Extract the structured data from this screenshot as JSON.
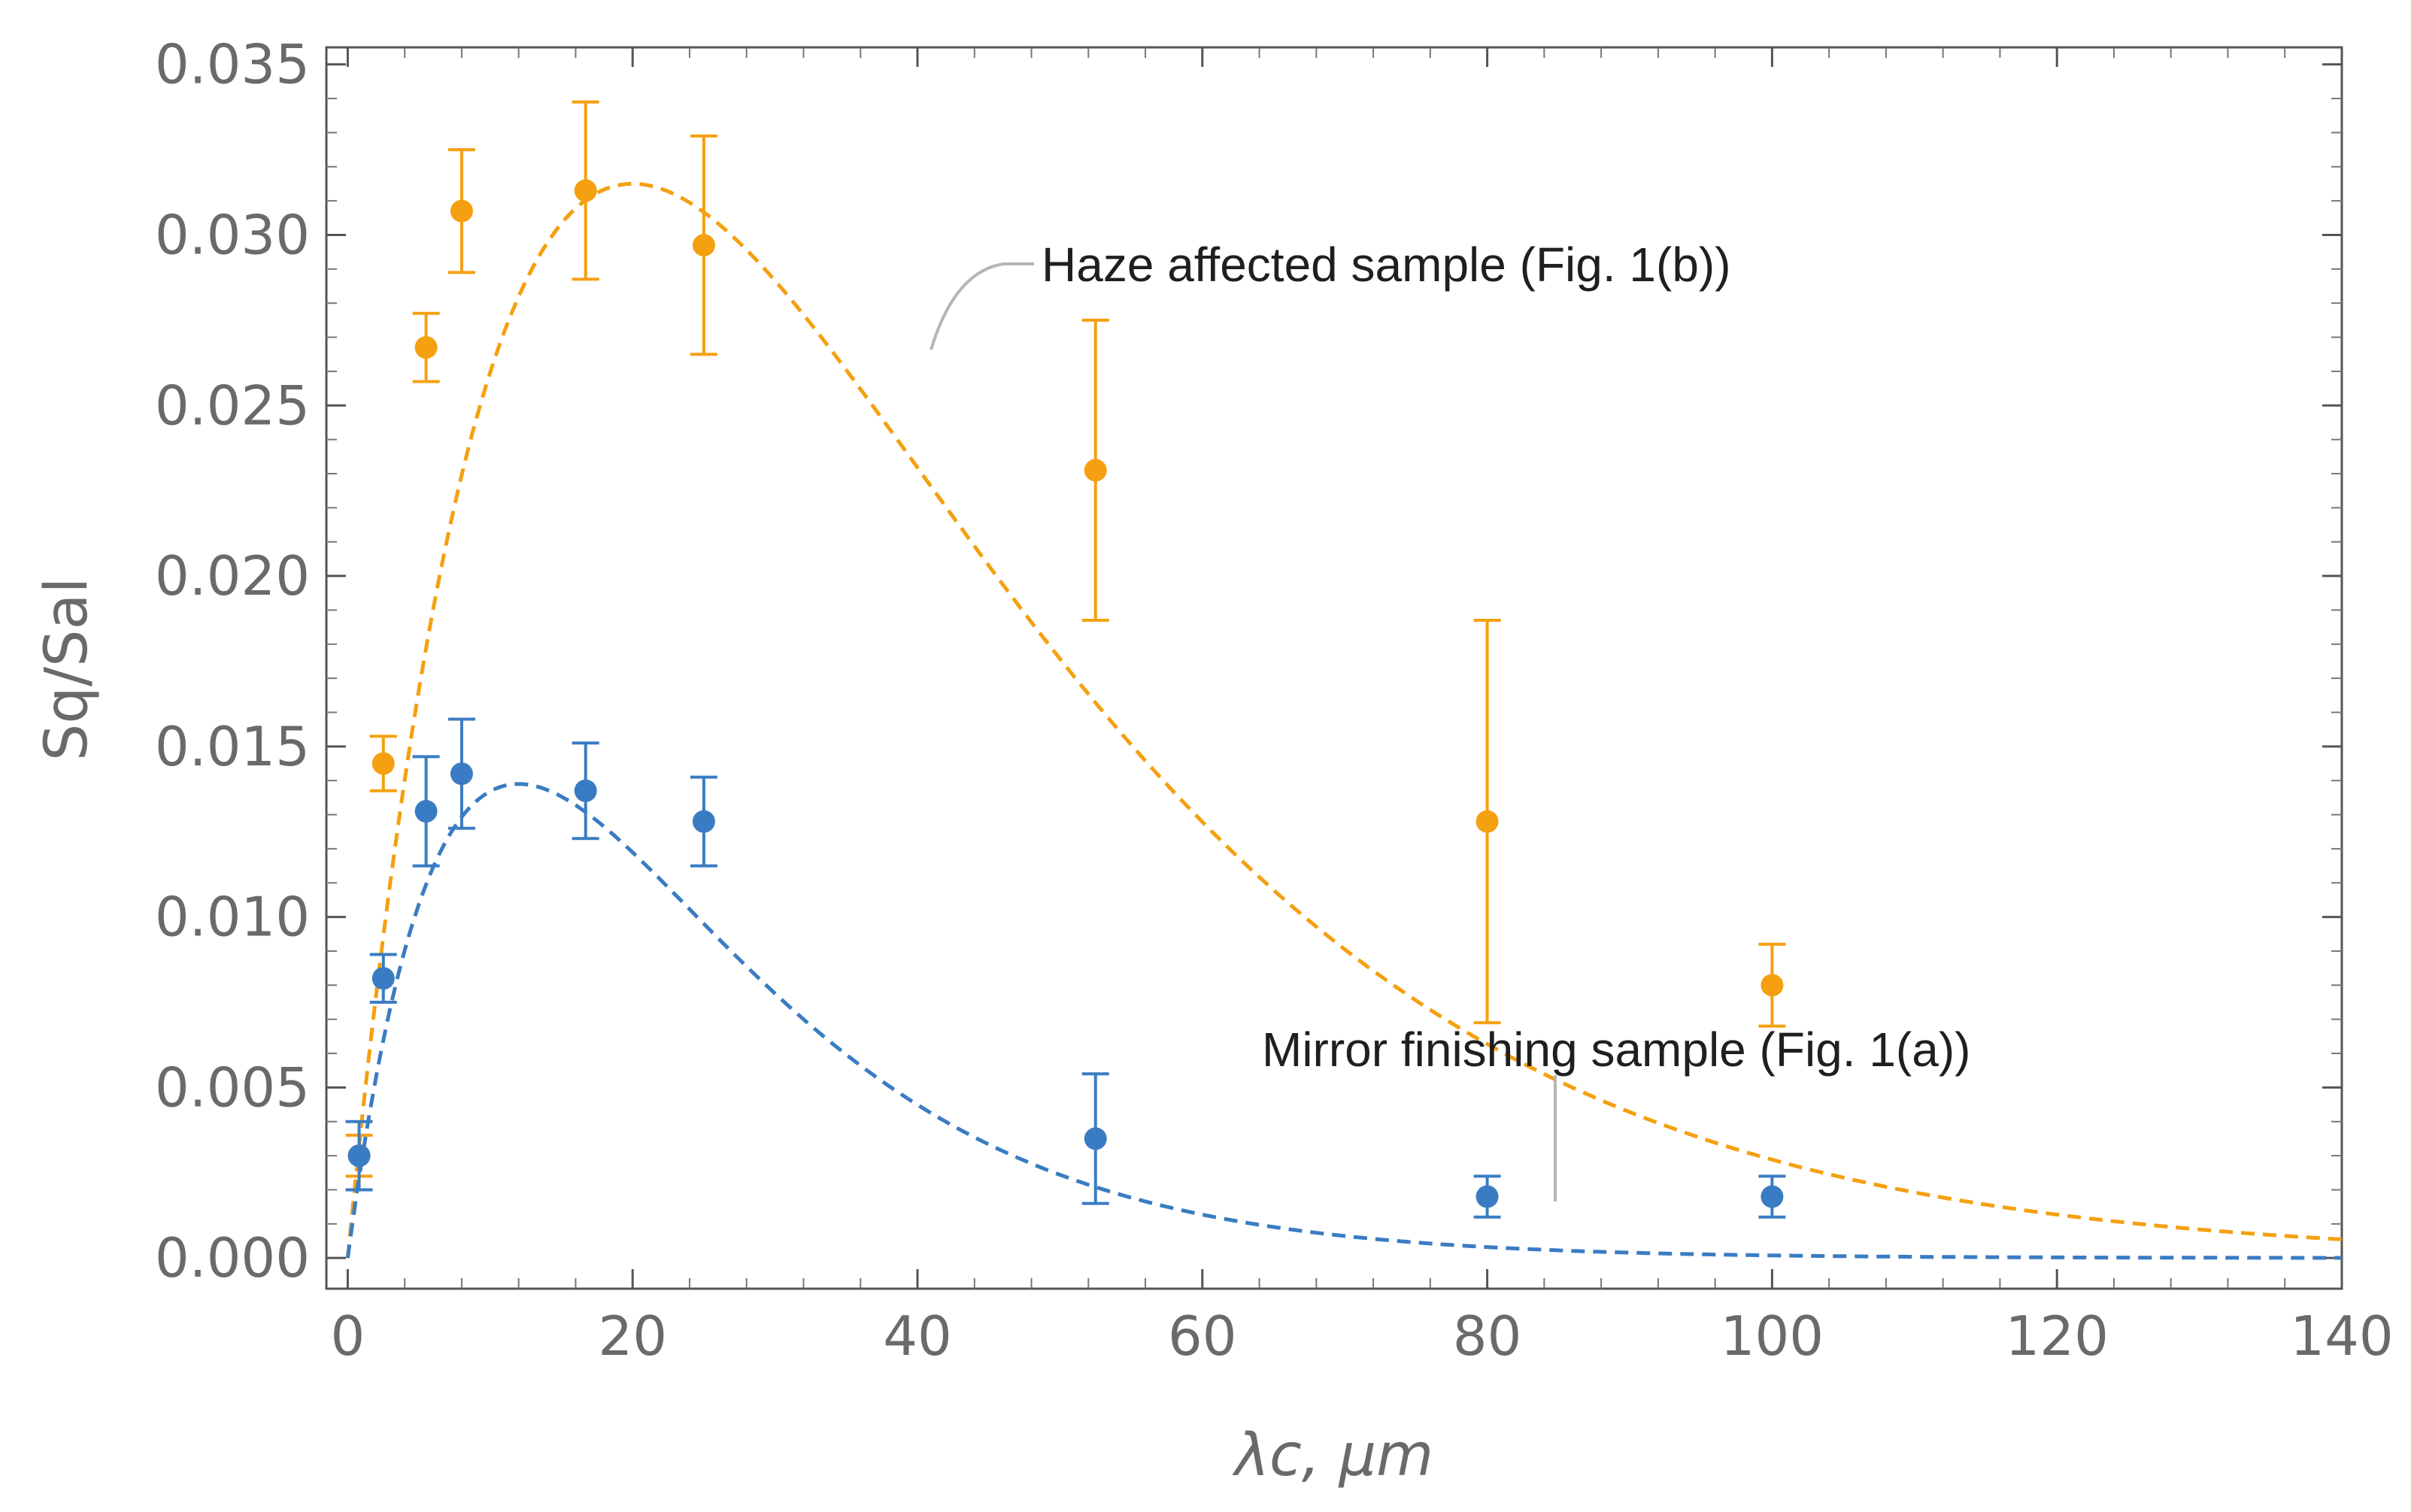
{
  "chart_data": {
    "type": "scatter",
    "xlabel": "λc, μm",
    "ylabel": "Sq/Sal",
    "xlim": [
      -1.5,
      140
    ],
    "ylim": [
      -0.0009,
      0.0355
    ],
    "x_ticks": [
      0,
      20,
      40,
      60,
      80,
      100,
      120,
      140
    ],
    "x_tick_labels": [
      "0",
      "20",
      "40",
      "60",
      "80",
      "100",
      "120",
      "140"
    ],
    "y_ticks": [
      0.0,
      0.005,
      0.01,
      0.015,
      0.02,
      0.025,
      0.03,
      0.035
    ],
    "y_tick_labels": [
      "0.000",
      "0.005",
      "0.010",
      "0.015",
      "0.020",
      "0.025",
      "0.030",
      "0.035"
    ],
    "grid": false,
    "series": [
      {
        "name": "Haze affected sample (Fig. 1(b))",
        "color": "#f5a010",
        "x": [
          0.8,
          2.5,
          5.5,
          8.0,
          16.7,
          25.0,
          52.5,
          80.0,
          100.0
        ],
        "y": [
          0.003,
          0.0145,
          0.0267,
          0.0307,
          0.0313,
          0.0297,
          0.0231,
          0.0128,
          0.008
        ],
        "error": [
          0.0006,
          0.0008,
          0.001,
          0.0018,
          0.0026,
          0.0032,
          0.0044,
          0.0059,
          0.0012
        ],
        "fit": {
          "style": "dashed",
          "peak_x": 20,
          "peak_y": 0.0315
        }
      },
      {
        "name": "Mirror finishing sample (Fig. 1(a))",
        "color": "#3a7cc3",
        "x": [
          0.8,
          2.5,
          5.5,
          8.0,
          16.7,
          25.0,
          52.5,
          80.0,
          100.0
        ],
        "y": [
          0.003,
          0.0082,
          0.0131,
          0.0142,
          0.0137,
          0.0128,
          0.0035,
          0.0018,
          0.0018
        ],
        "error": [
          0.001,
          0.0007,
          0.0016,
          0.0016,
          0.0014,
          0.0013,
          0.0019,
          0.0006,
          0.0006
        ],
        "fit": {
          "style": "dashed",
          "peak_x": 12,
          "peak_y": 0.0139
        }
      }
    ]
  }
}
